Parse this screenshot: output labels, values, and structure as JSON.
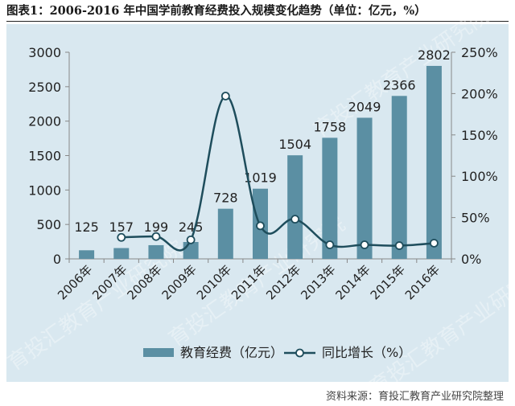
{
  "title": "图表1：2006-2016 年中国学前教育经费投入规模变化趋势（单位：亿元，%）",
  "source": "资料来源：育投汇教育产业研究院整理",
  "watermark": "育投汇教育产业研究院",
  "colors": {
    "bar": "#5b8fa3",
    "line": "#1e4d5c",
    "panel": "#d9e8f0",
    "axis_text": "#222222"
  },
  "chart_data": {
    "type": "bar",
    "categories": [
      "2006年",
      "2007年",
      "2008年",
      "2009年",
      "2010年",
      "2011年",
      "2012年",
      "2013年",
      "2014年",
      "2015年",
      "2016年"
    ],
    "series": [
      {
        "name": "教育经费（亿元）",
        "type": "bar",
        "axis": "left",
        "values": [
          125,
          157,
          199,
          245,
          728,
          1019,
          1504,
          1758,
          2049,
          2366,
          2802
        ]
      },
      {
        "name": "同比增长（%）",
        "type": "line",
        "axis": "right",
        "values": [
          null,
          26,
          27,
          23,
          197,
          40,
          48,
          17,
          17,
          16,
          19
        ]
      }
    ],
    "ylim": [
      0,
      3000
    ],
    "yticks": [
      "0",
      "500",
      "1000",
      "1500",
      "2000",
      "2500",
      "3000"
    ],
    "y2lim": [
      0,
      250
    ],
    "y2ticks": [
      "0%",
      "50%",
      "100%",
      "150%",
      "200%",
      "250%"
    ],
    "data_labels": [
      "125",
      "157",
      "199",
      "245",
      "728",
      "1019",
      "1504",
      "1758",
      "2049",
      "2366",
      "2802"
    ],
    "grid": false,
    "legend": "bottom"
  }
}
